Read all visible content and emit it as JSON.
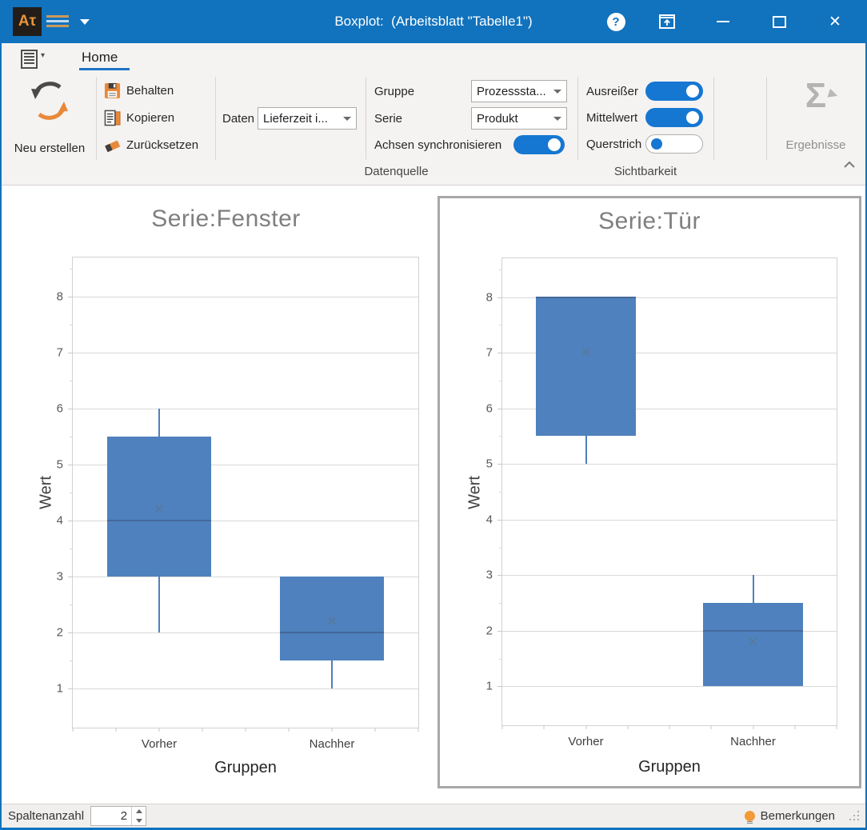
{
  "window": {
    "title": "Boxplot:  (Arbeitsblatt \"Tabelle1\")",
    "logo_text": "Aτ",
    "help_glyph": "?",
    "close_glyph": "✕"
  },
  "ribbon": {
    "tab_home": "Home",
    "neu_erstellen_label": "Neu erstellen",
    "behalten_label": "Behalten",
    "kopieren_label": "Kopieren",
    "zuruecksetzen_label": "Zurücksetzen",
    "daten_label": "Daten",
    "daten_value": "Lieferzeit i...",
    "gruppe_label": "Gruppe",
    "gruppe_value": "Prozesssta...",
    "serie_label": "Serie",
    "serie_value": "Produkt",
    "achsen_label": "Achsen synchronisieren",
    "ausreisser_label": "Ausreißer",
    "mittelwert_label": "Mittelwert",
    "querstrich_label": "Querstrich",
    "datenquelle_group_label": "Datenquelle",
    "sichtbarkeit_group_label": "Sichtbarkeit",
    "ergebnisse_label": "Ergebnisse",
    "sigma_glyph": "Σ"
  },
  "statusbar": {
    "spaltenanzahl_label": "Spaltenanzahl",
    "spaltenanzahl_value": "2",
    "bemerkungen_label": "Bemerkungen"
  },
  "glyphs": {
    "mean_marker": "✕"
  },
  "colors": {
    "titlebar": "#1172bd",
    "accent_toggle": "#1677d2",
    "box_fill": "#4e81bd",
    "median_line": "#44689a",
    "mean_marker": "#5a7893",
    "gridline": "#d9d9d9",
    "selection_border": "#a8a8a8"
  },
  "chart_data": [
    {
      "type": "boxplot",
      "title": "Serie:Fenster",
      "xlabel": "Gruppen",
      "ylabel": "Wert",
      "categories": [
        "Vorher",
        "Nachher"
      ],
      "yticks": [
        1,
        2,
        3,
        4,
        5,
        6,
        7,
        8
      ],
      "ylim": [
        0.3,
        8.7
      ],
      "grid": true,
      "selected": false,
      "boxes": [
        {
          "category": "Vorher",
          "whisker_low": 2,
          "q1": 3,
          "median": 4,
          "mean": 4.2,
          "q3": 5.5,
          "whisker_high": 6
        },
        {
          "category": "Nachher",
          "whisker_low": 1,
          "q1": 1.5,
          "median": 2,
          "mean": 2.2,
          "q3": 3,
          "whisker_high": 3
        }
      ]
    },
    {
      "type": "boxplot",
      "title": "Serie:Tür",
      "xlabel": "Gruppen",
      "ylabel": "Wert",
      "categories": [
        "Vorher",
        "Nachher"
      ],
      "yticks": [
        1,
        2,
        3,
        4,
        5,
        6,
        7,
        8
      ],
      "ylim": [
        0.3,
        8.7
      ],
      "grid": true,
      "selected": true,
      "boxes": [
        {
          "category": "Vorher",
          "whisker_low": 5,
          "q1": 5.5,
          "median": 8,
          "mean": 7,
          "q3": 8,
          "whisker_high": 8
        },
        {
          "category": "Nachher",
          "whisker_low": 1,
          "q1": 1,
          "median": 2,
          "mean": 1.8,
          "q3": 2.5,
          "whisker_high": 3
        }
      ]
    }
  ]
}
